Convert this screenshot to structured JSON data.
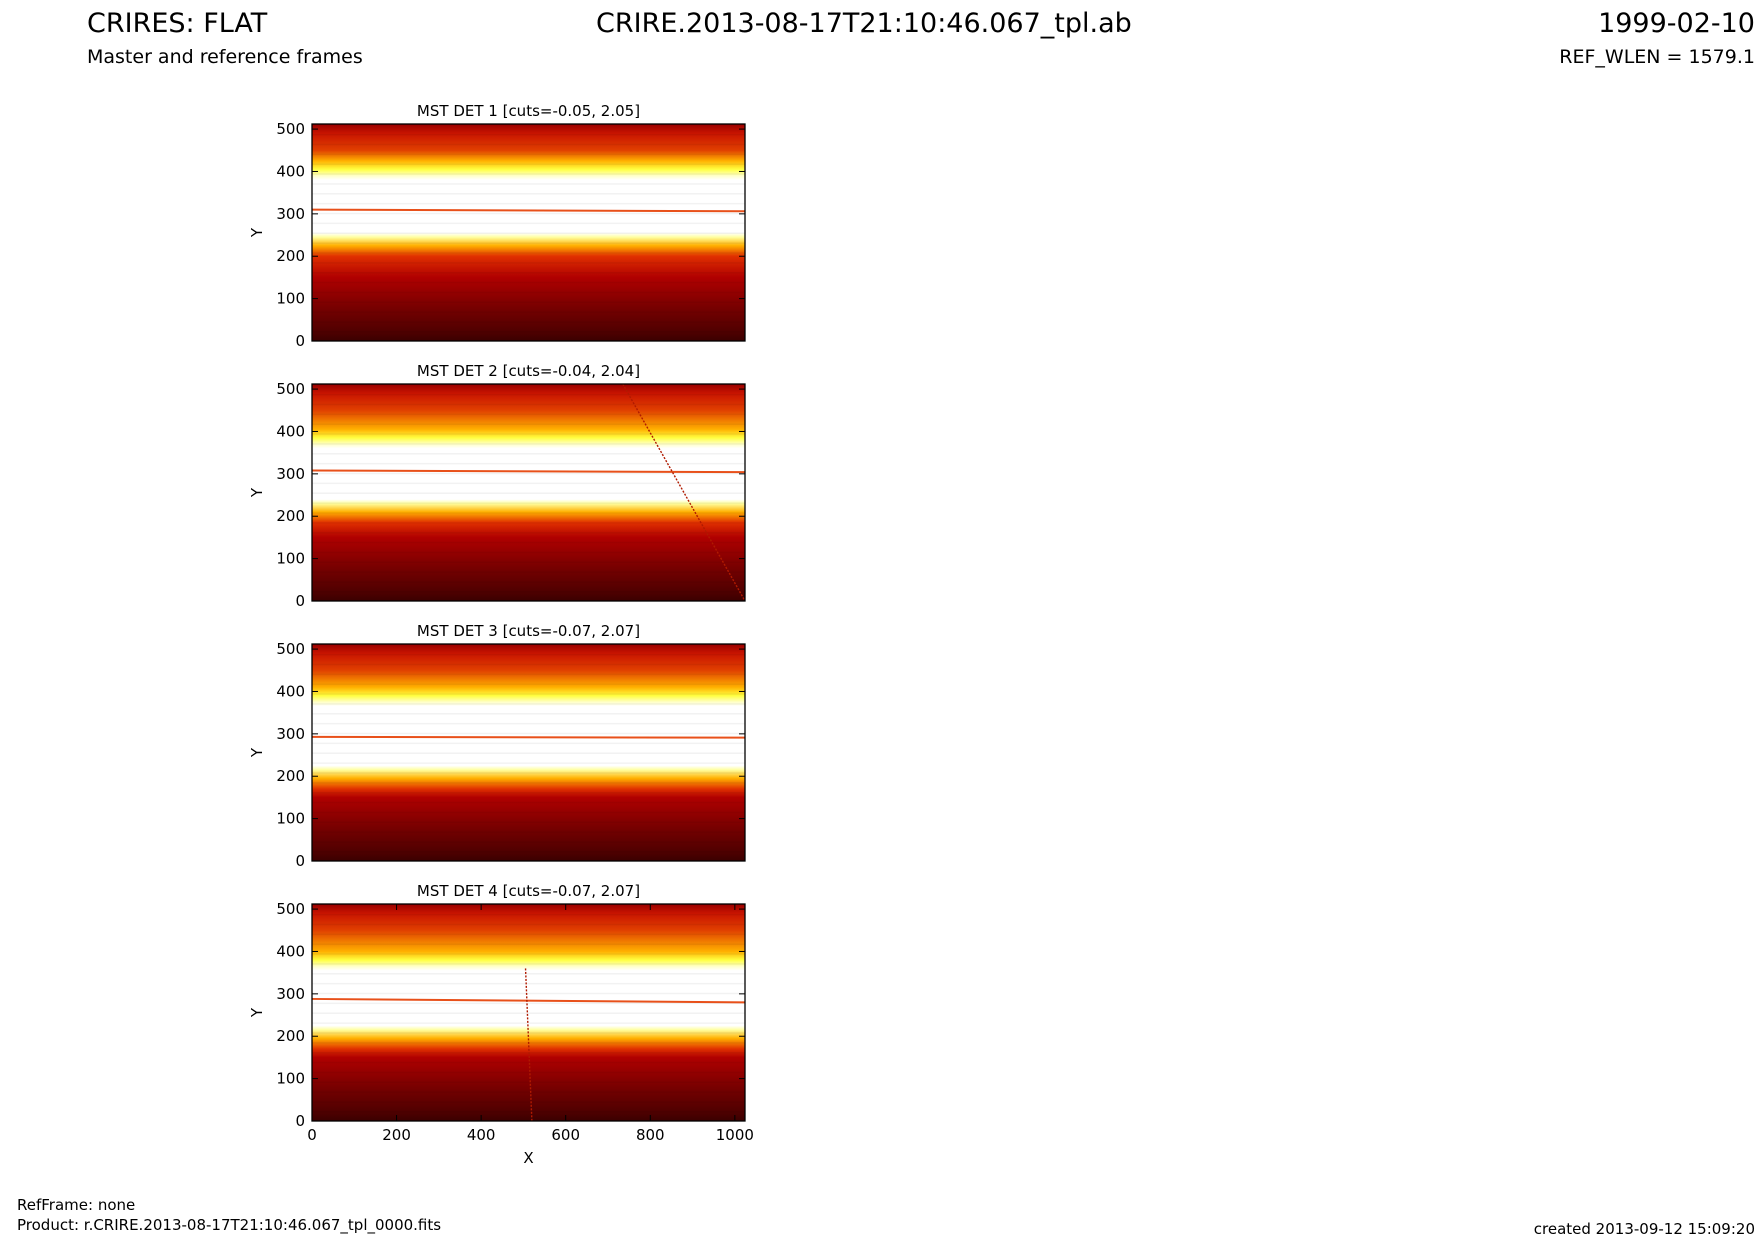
{
  "header": {
    "title_left": "CRIRES: FLAT",
    "subtitle_left": "Master and reference frames",
    "title_center": "CRIRE.2013-08-17T21:10:46.067_tpl.ab",
    "title_right": "1999-02-10",
    "subtitle_right": "REF_WLEN = 1579.1"
  },
  "footer": {
    "refframe": "RefFrame: none",
    "product": "Product: r.CRIRE.2013-08-17T21:10:46.067_tpl_0000.fits",
    "created": "created 2013-09-12 15:09:20"
  },
  "chart_data": [
    {
      "type": "heatmap",
      "title": "MST DET 1 [cuts=-0.05, 2.05]",
      "xlabel": "",
      "ylabel": "Y",
      "xlim": [
        0,
        1024
      ],
      "ylim": [
        0,
        512
      ],
      "yticks": [
        0,
        100,
        200,
        300,
        400,
        500
      ],
      "xticks": [],
      "colormap": "hot",
      "cuts": [
        -0.05,
        2.05
      ],
      "bright_band_y": [
        240,
        395
      ],
      "horizontal_line_y": [
        310,
        306
      ],
      "diagonal_streak": null
    },
    {
      "type": "heatmap",
      "title": "MST DET 2 [cuts=-0.04, 2.04]",
      "xlabel": "",
      "ylabel": "Y",
      "xlim": [
        0,
        1024
      ],
      "ylim": [
        0,
        512
      ],
      "yticks": [
        0,
        100,
        200,
        300,
        400,
        500
      ],
      "xticks": [],
      "colormap": "hot",
      "cuts": [
        -0.04,
        2.04
      ],
      "bright_band_y": [
        225,
        375
      ],
      "horizontal_line_y": [
        308,
        304
      ],
      "diagonal_streak": [
        [
          735,
          512
        ],
        [
          1024,
          0
        ]
      ]
    },
    {
      "type": "heatmap",
      "title": "MST DET 3 [cuts=-0.07, 2.07]",
      "xlabel": "",
      "ylabel": "Y",
      "xlim": [
        0,
        1024
      ],
      "ylim": [
        0,
        512
      ],
      "yticks": [
        0,
        100,
        200,
        300,
        400,
        500
      ],
      "xticks": [],
      "colormap": "hot",
      "cuts": [
        -0.07,
        2.07
      ],
      "bright_band_y": [
        210,
        380
      ],
      "horizontal_line_y": [
        293,
        291
      ],
      "diagonal_streak": null
    },
    {
      "type": "heatmap",
      "title": "MST DET 4 [cuts=-0.07, 2.07]",
      "xlabel": "X",
      "ylabel": "Y",
      "xlim": [
        0,
        1024
      ],
      "ylim": [
        0,
        512
      ],
      "yticks": [
        0,
        100,
        200,
        300,
        400,
        500
      ],
      "xticks": [
        0,
        200,
        400,
        600,
        800,
        1000
      ],
      "colormap": "hot",
      "cuts": [
        -0.07,
        2.07
      ],
      "bright_band_y": [
        210,
        370
      ],
      "horizontal_line_y": [
        288,
        280
      ],
      "diagonal_streak": [
        [
          505,
          360
        ],
        [
          520,
          0
        ]
      ]
    }
  ]
}
